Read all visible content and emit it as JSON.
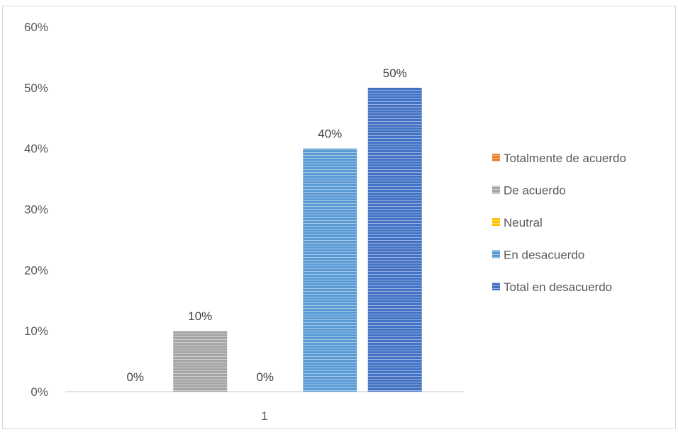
{
  "chart_data": {
    "type": "bar",
    "categories": [
      "1"
    ],
    "series": [
      {
        "name": "Totalmente de acuerdo",
        "values": [
          0
        ],
        "label": "0%",
        "color": "#ed7d31"
      },
      {
        "name": "De acuerdo",
        "values": [
          10
        ],
        "label": "10%",
        "color": "#a5a5a5"
      },
      {
        "name": "Neutral",
        "values": [
          0
        ],
        "label": "0%",
        "color": "#ffc000"
      },
      {
        "name": "En desacuerdo",
        "values": [
          40
        ],
        "label": "40%",
        "color": "#5b9bd5"
      },
      {
        "name": "Total en desacuerdo",
        "values": [
          50
        ],
        "label": "50%",
        "color": "#4472c4"
      }
    ],
    "ylim": [
      0,
      60
    ],
    "y_ticks": [
      "0%",
      "10%",
      "20%",
      "30%",
      "40%",
      "50%",
      "60%"
    ],
    "grid": false,
    "legend_position": "right",
    "bar_fill": "horizontal-stripes",
    "title": "",
    "xlabel": "",
    "ylabel": ""
  }
}
